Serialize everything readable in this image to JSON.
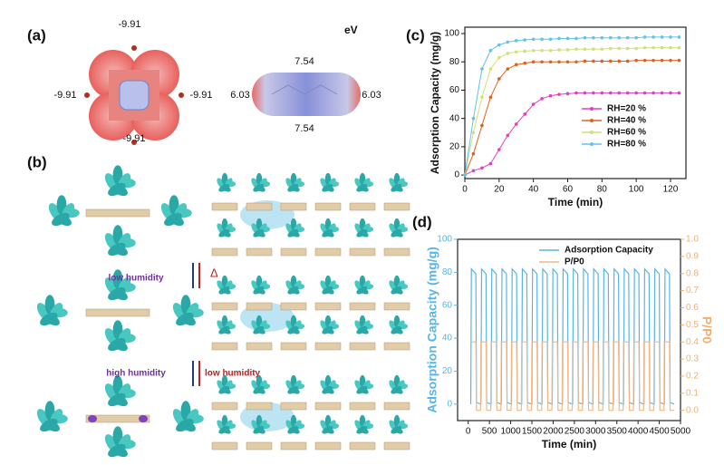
{
  "figure": {
    "labels": [
      "(a)",
      "(b)",
      "(c)",
      "(d)"
    ],
    "a": {
      "unit": "eV",
      "left_values": [
        "-9.91",
        "-9.91",
        "-9.91",
        "-9.91"
      ],
      "right_values": [
        "7.54",
        "6.03",
        "6.03",
        "7.54"
      ]
    },
    "b": {
      "step1": [
        "low humidity",
        "Δ"
      ],
      "step2": [
        "high humidity",
        "low humidity"
      ]
    }
  },
  "chart_data": [
    {
      "type": "line",
      "xlabel": "Time (min)",
      "ylabel": "Adsorption Capacity (mg/g)",
      "x": [
        0,
        5,
        10,
        15,
        20,
        25,
        30,
        35,
        40,
        45,
        50,
        55,
        60,
        65,
        70,
        75,
        80,
        85,
        90,
        95,
        100,
        105,
        110,
        115,
        120,
        125
      ],
      "xlim": [
        0,
        129
      ],
      "xticks": [
        0,
        20,
        40,
        60,
        80,
        100,
        120
      ],
      "ylim": [
        -2.5,
        104.5
      ],
      "yticks": [
        0,
        20,
        40,
        60,
        80,
        100
      ],
      "markers": true,
      "legend": "lower right",
      "series": [
        {
          "name": "RH=20 %",
          "color": "#e040c0",
          "values": [
            0,
            3,
            5,
            8,
            18,
            28,
            36,
            43,
            50,
            54,
            56,
            57,
            57.5,
            58,
            58,
            58,
            58,
            58,
            58,
            58,
            58,
            58,
            58,
            58,
            58,
            58
          ]
        },
        {
          "name": "RH=40 %",
          "color": "#e06020",
          "values": [
            0,
            15,
            35,
            55,
            68,
            75,
            78,
            79,
            80,
            80,
            80,
            80,
            80,
            80,
            80.5,
            80.5,
            80.5,
            80.5,
            80.5,
            80.5,
            81,
            81,
            81,
            81,
            81,
            81
          ]
        },
        {
          "name": "RH=60 %",
          "color": "#d4de7c",
          "values": [
            0,
            30,
            55,
            75,
            83,
            86,
            87,
            87.5,
            88,
            88,
            88,
            88.5,
            88.5,
            89,
            89,
            89,
            89,
            89.5,
            89.5,
            89.5,
            89.5,
            90,
            90,
            90,
            90,
            90
          ]
        },
        {
          "name": "RH=80 %",
          "color": "#62c2ea",
          "values": [
            0,
            40,
            75,
            88,
            92,
            94,
            95,
            95.5,
            96,
            96,
            96,
            96.5,
            96.5,
            96.5,
            97,
            97,
            97,
            97,
            97,
            97,
            97,
            97.5,
            97.5,
            97.5,
            97.5,
            97.5
          ]
        }
      ]
    },
    {
      "type": "line",
      "xlabel": "Time (min)",
      "ylabel": "Adsorption Capacity (mg/g)",
      "y2label": "P/P0",
      "ylabel_color": "#5ab4e6",
      "y2label_color": "#f0b070",
      "x": [
        60,
        75,
        180,
        195,
        290,
        300,
        315,
        420,
        435,
        530,
        540,
        555,
        660,
        675,
        770,
        780,
        795,
        900,
        915,
        1010,
        1020,
        1035,
        1140,
        1155,
        1250,
        1260,
        1275,
        1380,
        1395,
        1490,
        1500,
        1515,
        1620,
        1635,
        1730,
        1740,
        1755,
        1860,
        1875,
        1970,
        1980,
        1995,
        2100,
        2115,
        2210,
        2220,
        2235,
        2340,
        2355,
        2450,
        2460,
        2475,
        2580,
        2595,
        2690,
        2700,
        2715,
        2820,
        2835,
        2930,
        2940,
        2955,
        3060,
        3075,
        3170,
        3180,
        3195,
        3300,
        3315,
        3410,
        3420,
        3435,
        3540,
        3555,
        3650,
        3660,
        3675,
        3780,
        3795,
        3890,
        3900,
        3915,
        4020,
        4035,
        4130,
        4140,
        4155,
        4260,
        4275,
        4370,
        4380,
        4395,
        4500,
        4515,
        4610,
        4620,
        4635,
        4740,
        4755,
        4850
      ],
      "xlim": [
        -250,
        5000
      ],
      "xticks": [
        0,
        500,
        1000,
        1500,
        2000,
        2500,
        3000,
        3500,
        4000,
        4500,
        5000
      ],
      "ylim": [
        -10,
        100
      ],
      "yticks": [
        0,
        20,
        40,
        60,
        80,
        100
      ],
      "y2lim": [
        -0.06,
        1.0
      ],
      "y2ticks": [
        {
          "value": 0,
          "label": "0.0"
        },
        0.1,
        0.2,
        0.3,
        0.4,
        0.5,
        0.6,
        0.7,
        0.8,
        0.9,
        {
          "value": 1,
          "label": "1.0"
        }
      ],
      "markers": false,
      "legend": "upper center",
      "series": [
        {
          "name": "Adsorption Capacity",
          "color": "#5ab4e6",
          "values": [
            0,
            82,
            79,
            1,
            0,
            0,
            82,
            79,
            1,
            0,
            0,
            82,
            79,
            1,
            0,
            0,
            82,
            79,
            1,
            0,
            0,
            82,
            79,
            1,
            0,
            0,
            82,
            79,
            1,
            0,
            0,
            82,
            79,
            1,
            0,
            0,
            82,
            79,
            1,
            0,
            0,
            82,
            79,
            1,
            0,
            0,
            82,
            79,
            1,
            0,
            0,
            82,
            79,
            1,
            0,
            0,
            82,
            79,
            1,
            0,
            0,
            82,
            79,
            1,
            0,
            0,
            82,
            79,
            1,
            0,
            0,
            82,
            79,
            1,
            0,
            0,
            82,
            79,
            1,
            0,
            0,
            82,
            79,
            1,
            0,
            0,
            82,
            79,
            1,
            0,
            0,
            82,
            79,
            1,
            0,
            0,
            82,
            79,
            1,
            0
          ]
        },
        {
          "name": "P/P0",
          "color": "#f0b888",
          "axis": "y2",
          "values": [
            0.4,
            0.4,
            0.4,
            0,
            0,
            0.4,
            0.4,
            0.4,
            0,
            0,
            0.4,
            0.4,
            0.4,
            0,
            0,
            0.4,
            0.4,
            0.4,
            0,
            0,
            0.4,
            0.4,
            0.4,
            0,
            0,
            0.4,
            0.4,
            0.4,
            0,
            0,
            0.4,
            0.4,
            0.4,
            0,
            0,
            0.4,
            0.4,
            0.4,
            0,
            0,
            0.4,
            0.4,
            0.4,
            0,
            0,
            0.4,
            0.4,
            0.4,
            0,
            0,
            0.4,
            0.4,
            0.4,
            0,
            0,
            0.4,
            0.4,
            0.4,
            0,
            0,
            0.4,
            0.4,
            0.4,
            0,
            0,
            0.4,
            0.4,
            0.4,
            0,
            0,
            0.4,
            0.4,
            0.4,
            0,
            0,
            0.4,
            0.4,
            0.4,
            0,
            0,
            0.4,
            0.4,
            0.4,
            0,
            0,
            0.4,
            0.4,
            0.4,
            0,
            0,
            0.4,
            0.4,
            0.4,
            0,
            0,
            0.4,
            0.4,
            0.4,
            0,
            0
          ]
        }
      ]
    }
  ]
}
